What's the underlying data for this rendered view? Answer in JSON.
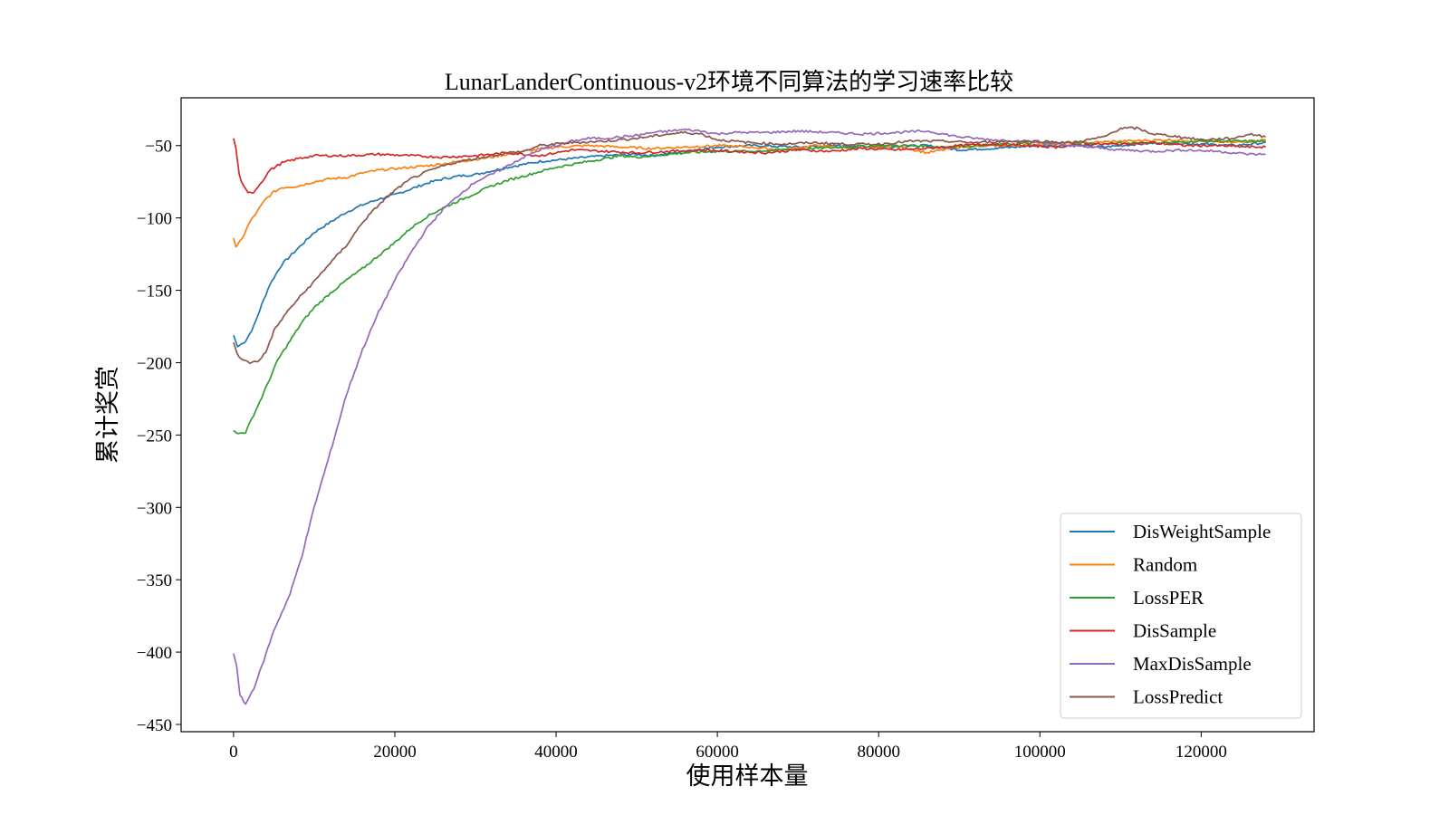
{
  "chart_data": {
    "type": "line",
    "title": "LunarLanderContinuous-v2环境不同算法的学习速率比较",
    "xlabel": "使用样本量",
    "ylabel": "累计奖赏",
    "xlim": [
      -6500,
      134000
    ],
    "ylim": [
      -455,
      -17
    ],
    "xticks": [
      0,
      20000,
      40000,
      60000,
      80000,
      100000,
      120000
    ],
    "yticks": [
      -50,
      -100,
      -150,
      -200,
      -250,
      -300,
      -350,
      -400,
      -450
    ],
    "xtick_labels": [
      "0",
      "20000",
      "40000",
      "60000",
      "80000",
      "100000",
      "120000"
    ],
    "ytick_labels": [
      "−50",
      "−100",
      "−150",
      "−200",
      "−250",
      "−300",
      "−350",
      "−400",
      "−450"
    ],
    "legend_position": "lower-right",
    "grid": false,
    "series": [
      {
        "name": "DisWeightSample",
        "color": "#1f77b4",
        "points": [
          [
            0,
            -181
          ],
          [
            500,
            -189
          ],
          [
            1500,
            -185
          ],
          [
            2500,
            -175
          ],
          [
            3500,
            -160
          ],
          [
            4500,
            -146
          ],
          [
            6000,
            -132
          ],
          [
            8000,
            -121
          ],
          [
            10000,
            -110
          ],
          [
            12000,
            -103
          ],
          [
            14000,
            -96
          ],
          [
            16000,
            -91
          ],
          [
            18000,
            -87
          ],
          [
            20000,
            -84
          ],
          [
            22000,
            -80
          ],
          [
            24000,
            -76
          ],
          [
            26000,
            -73
          ],
          [
            28000,
            -71
          ],
          [
            30000,
            -70
          ],
          [
            34000,
            -65
          ],
          [
            38000,
            -61
          ],
          [
            42000,
            -59
          ],
          [
            46000,
            -57
          ],
          [
            50000,
            -56
          ],
          [
            52000,
            -57
          ],
          [
            56000,
            -54
          ],
          [
            60000,
            -51
          ],
          [
            64000,
            -50
          ],
          [
            70000,
            -51
          ],
          [
            76000,
            -50
          ],
          [
            80000,
            -51
          ],
          [
            86000,
            -50
          ],
          [
            90000,
            -53
          ],
          [
            94000,
            -52
          ],
          [
            100000,
            -50
          ],
          [
            104000,
            -50
          ],
          [
            108000,
            -51
          ],
          [
            112000,
            -49
          ],
          [
            116000,
            -48
          ],
          [
            120000,
            -49
          ],
          [
            124000,
            -50
          ],
          [
            128000,
            -48
          ]
        ]
      },
      {
        "name": "Random",
        "color": "#ff7f0e",
        "points": [
          [
            0,
            -114
          ],
          [
            300,
            -120
          ],
          [
            1000,
            -115
          ],
          [
            2000,
            -103
          ],
          [
            3000,
            -95
          ],
          [
            4000,
            -87
          ],
          [
            5000,
            -82
          ],
          [
            6000,
            -79
          ],
          [
            8000,
            -78
          ],
          [
            10000,
            -75
          ],
          [
            12000,
            -73
          ],
          [
            14000,
            -72
          ],
          [
            16000,
            -69
          ],
          [
            18000,
            -67
          ],
          [
            20000,
            -66
          ],
          [
            24000,
            -64
          ],
          [
            28000,
            -61
          ],
          [
            32000,
            -58
          ],
          [
            36000,
            -54
          ],
          [
            40000,
            -51
          ],
          [
            44000,
            -50
          ],
          [
            48000,
            -51
          ],
          [
            52000,
            -52
          ],
          [
            56000,
            -51
          ],
          [
            60000,
            -50
          ],
          [
            64000,
            -51
          ],
          [
            68000,
            -53
          ],
          [
            72000,
            -50
          ],
          [
            78000,
            -52
          ],
          [
            82000,
            -50
          ],
          [
            86000,
            -55
          ],
          [
            90000,
            -51
          ],
          [
            96000,
            -50
          ],
          [
            100000,
            -49
          ],
          [
            106000,
            -48
          ],
          [
            110000,
            -47
          ],
          [
            116000,
            -46
          ],
          [
            120000,
            -47
          ],
          [
            124000,
            -48
          ],
          [
            128000,
            -46
          ]
        ]
      },
      {
        "name": "LossPER",
        "color": "#2ca02c",
        "points": [
          [
            0,
            -247
          ],
          [
            500,
            -249
          ],
          [
            1500,
            -248
          ],
          [
            2500,
            -236
          ],
          [
            3500,
            -224
          ],
          [
            4500,
            -211
          ],
          [
            5500,
            -198
          ],
          [
            7000,
            -185
          ],
          [
            8500,
            -172
          ],
          [
            10000,
            -162
          ],
          [
            12000,
            -152
          ],
          [
            14000,
            -143
          ],
          [
            16000,
            -135
          ],
          [
            18000,
            -126
          ],
          [
            20000,
            -117
          ],
          [
            22000,
            -107
          ],
          [
            24000,
            -99
          ],
          [
            26000,
            -93
          ],
          [
            28000,
            -88
          ],
          [
            30000,
            -83
          ],
          [
            32000,
            -78
          ],
          [
            34000,
            -74
          ],
          [
            36000,
            -71
          ],
          [
            38000,
            -68
          ],
          [
            40000,
            -65
          ],
          [
            42000,
            -63
          ],
          [
            44000,
            -61
          ],
          [
            46000,
            -59
          ],
          [
            48000,
            -57
          ],
          [
            50000,
            -58
          ],
          [
            52000,
            -57
          ],
          [
            56000,
            -55
          ],
          [
            60000,
            -54
          ],
          [
            64000,
            -54
          ],
          [
            68000,
            -53
          ],
          [
            72000,
            -52
          ],
          [
            76000,
            -51
          ],
          [
            80000,
            -50
          ],
          [
            84000,
            -50
          ],
          [
            88000,
            -51
          ],
          [
            92000,
            -50
          ],
          [
            96000,
            -49
          ],
          [
            100000,
            -48
          ],
          [
            104000,
            -48
          ],
          [
            108000,
            -49
          ],
          [
            112000,
            -48
          ],
          [
            116000,
            -48
          ],
          [
            120000,
            -47
          ],
          [
            124000,
            -47
          ],
          [
            128000,
            -47
          ]
        ]
      },
      {
        "name": "DisSample",
        "color": "#d62728",
        "points": [
          [
            0,
            -45
          ],
          [
            300,
            -52
          ],
          [
            700,
            -70
          ],
          [
            1200,
            -78
          ],
          [
            1800,
            -83
          ],
          [
            2500,
            -82
          ],
          [
            3500,
            -75
          ],
          [
            4500,
            -67
          ],
          [
            6000,
            -62
          ],
          [
            8000,
            -59
          ],
          [
            10000,
            -57
          ],
          [
            14000,
            -57
          ],
          [
            18000,
            -56
          ],
          [
            22000,
            -57
          ],
          [
            26000,
            -58
          ],
          [
            30000,
            -57
          ],
          [
            34000,
            -55
          ],
          [
            38000,
            -57
          ],
          [
            42000,
            -53
          ],
          [
            46000,
            -54
          ],
          [
            50000,
            -55
          ],
          [
            54000,
            -54
          ],
          [
            58000,
            -53
          ],
          [
            62000,
            -54
          ],
          [
            66000,
            -55
          ],
          [
            70000,
            -53
          ],
          [
            74000,
            -54
          ],
          [
            78000,
            -52
          ],
          [
            82000,
            -53
          ],
          [
            86000,
            -52
          ],
          [
            90000,
            -50
          ],
          [
            94000,
            -49
          ],
          [
            98000,
            -50
          ],
          [
            102000,
            -51
          ],
          [
            106000,
            -49
          ],
          [
            110000,
            -49
          ],
          [
            114000,
            -48
          ],
          [
            118000,
            -50
          ],
          [
            122000,
            -50
          ],
          [
            126000,
            -51
          ],
          [
            128000,
            -51
          ]
        ]
      },
      {
        "name": "MaxDisSample",
        "color": "#9467bd",
        "points": [
          [
            0,
            -401
          ],
          [
            400,
            -410
          ],
          [
            800,
            -430
          ],
          [
            1500,
            -436
          ],
          [
            2500,
            -425
          ],
          [
            3500,
            -410
          ],
          [
            5000,
            -385
          ],
          [
            7000,
            -360
          ],
          [
            8500,
            -333
          ],
          [
            10000,
            -300
          ],
          [
            12000,
            -262
          ],
          [
            14000,
            -222
          ],
          [
            16000,
            -191
          ],
          [
            18000,
            -165
          ],
          [
            20000,
            -143
          ],
          [
            22000,
            -124
          ],
          [
            24000,
            -107
          ],
          [
            26000,
            -94
          ],
          [
            28000,
            -84
          ],
          [
            30000,
            -75
          ],
          [
            32000,
            -70
          ],
          [
            34000,
            -64
          ],
          [
            36000,
            -58
          ],
          [
            38000,
            -53
          ],
          [
            40000,
            -50
          ],
          [
            42000,
            -47
          ],
          [
            44000,
            -45
          ],
          [
            46000,
            -45
          ],
          [
            48000,
            -44
          ],
          [
            50000,
            -43
          ],
          [
            52000,
            -41
          ],
          [
            54000,
            -40
          ],
          [
            56000,
            -39
          ],
          [
            58000,
            -40
          ],
          [
            60000,
            -42
          ],
          [
            62000,
            -41
          ],
          [
            66000,
            -41
          ],
          [
            70000,
            -40
          ],
          [
            74000,
            -41
          ],
          [
            78000,
            -42
          ],
          [
            82000,
            -41
          ],
          [
            86000,
            -40
          ],
          [
            90000,
            -44
          ],
          [
            94000,
            -46
          ],
          [
            98000,
            -47
          ],
          [
            102000,
            -49
          ],
          [
            106000,
            -51
          ],
          [
            110000,
            -53
          ],
          [
            114000,
            -54
          ],
          [
            118000,
            -53
          ],
          [
            122000,
            -54
          ],
          [
            126000,
            -56
          ],
          [
            128000,
            -56
          ]
        ]
      },
      {
        "name": "LossPredict",
        "color": "#8c564b",
        "points": [
          [
            0,
            -186
          ],
          [
            400,
            -193
          ],
          [
            1000,
            -198
          ],
          [
            2000,
            -200
          ],
          [
            3000,
            -199
          ],
          [
            4000,
            -193
          ],
          [
            5000,
            -178
          ],
          [
            6500,
            -166
          ],
          [
            8000,
            -156
          ],
          [
            10000,
            -144
          ],
          [
            12000,
            -131
          ],
          [
            14000,
            -119
          ],
          [
            16000,
            -103
          ],
          [
            18000,
            -91
          ],
          [
            20000,
            -81
          ],
          [
            22000,
            -73
          ],
          [
            24000,
            -68
          ],
          [
            26000,
            -64
          ],
          [
            28000,
            -61
          ],
          [
            30000,
            -59
          ],
          [
            32000,
            -57
          ],
          [
            34000,
            -55
          ],
          [
            36000,
            -54
          ],
          [
            38000,
            -50
          ],
          [
            40000,
            -49
          ],
          [
            42000,
            -48
          ],
          [
            46000,
            -47
          ],
          [
            50000,
            -45
          ],
          [
            54000,
            -42
          ],
          [
            56000,
            -41
          ],
          [
            58000,
            -42
          ],
          [
            60000,
            -46
          ],
          [
            64000,
            -48
          ],
          [
            68000,
            -49
          ],
          [
            72000,
            -48
          ],
          [
            76000,
            -49
          ],
          [
            80000,
            -49
          ],
          [
            84000,
            -47
          ],
          [
            88000,
            -47
          ],
          [
            92000,
            -48
          ],
          [
            96000,
            -47
          ],
          [
            100000,
            -47
          ],
          [
            104000,
            -48
          ],
          [
            108000,
            -44
          ],
          [
            110000,
            -38
          ],
          [
            112000,
            -38
          ],
          [
            114000,
            -42
          ],
          [
            116000,
            -43
          ],
          [
            120000,
            -46
          ],
          [
            124000,
            -45
          ],
          [
            126000,
            -42
          ],
          [
            128000,
            -44
          ]
        ]
      }
    ]
  }
}
